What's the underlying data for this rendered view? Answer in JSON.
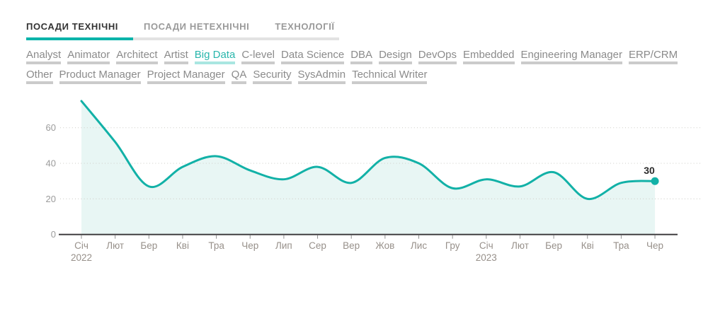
{
  "accent_color": "#00b3a9",
  "tabs": {
    "items": [
      {
        "label": "ПОСАДИ ТЕХНІЧНІ",
        "name": "tab-technical-positions",
        "active": true
      },
      {
        "label": "ПОСАДИ НЕТЕХНІЧНІ",
        "name": "tab-non-technical-positions",
        "active": false
      },
      {
        "label": "ТЕХНОЛОГІЇ",
        "name": "tab-technologies",
        "active": false
      }
    ]
  },
  "filters": {
    "items": [
      {
        "label": "Analyst",
        "name": "filter-analyst",
        "selected": false
      },
      {
        "label": "Animator",
        "name": "filter-animator",
        "selected": false
      },
      {
        "label": "Architect",
        "name": "filter-architect",
        "selected": false
      },
      {
        "label": "Artist",
        "name": "filter-artist",
        "selected": false
      },
      {
        "label": "Big Data",
        "name": "filter-big-data",
        "selected": true
      },
      {
        "label": "C-level",
        "name": "filter-c-level",
        "selected": false
      },
      {
        "label": "Data Science",
        "name": "filter-data-science",
        "selected": false
      },
      {
        "label": "DBA",
        "name": "filter-dba",
        "selected": false
      },
      {
        "label": "Design",
        "name": "filter-design",
        "selected": false
      },
      {
        "label": "DevOps",
        "name": "filter-devops",
        "selected": false
      },
      {
        "label": "Embedded",
        "name": "filter-embedded",
        "selected": false
      },
      {
        "label": "Engineering Manager",
        "name": "filter-engineering-manager",
        "selected": false
      },
      {
        "label": "ERP/CRM",
        "name": "filter-erp-crm",
        "selected": false
      },
      {
        "label": "Other",
        "name": "filter-other",
        "selected": false
      },
      {
        "label": "Product Manager",
        "name": "filter-product-manager",
        "selected": false
      },
      {
        "label": "Project Manager",
        "name": "filter-project-manager",
        "selected": false
      },
      {
        "label": "QA",
        "name": "filter-qa",
        "selected": false
      },
      {
        "label": "Security",
        "name": "filter-security",
        "selected": false
      },
      {
        "label": "SysAdmin",
        "name": "filter-sysadmin",
        "selected": false
      },
      {
        "label": "Technical Writer",
        "name": "filter-technical-writer",
        "selected": false
      }
    ]
  },
  "chart_data": {
    "type": "line",
    "series": "Big Data",
    "categories": [
      {
        "label": "Січ",
        "year": "2022"
      },
      {
        "label": "Лют"
      },
      {
        "label": "Бер"
      },
      {
        "label": "Кві"
      },
      {
        "label": "Тра"
      },
      {
        "label": "Чер"
      },
      {
        "label": "Лип"
      },
      {
        "label": "Сер"
      },
      {
        "label": "Вер"
      },
      {
        "label": "Жов"
      },
      {
        "label": "Лис"
      },
      {
        "label": "Гру"
      },
      {
        "label": "Січ",
        "year": "2023"
      },
      {
        "label": "Лют"
      },
      {
        "label": "Бер"
      },
      {
        "label": "Кві"
      },
      {
        "label": "Тра"
      },
      {
        "label": "Чер"
      }
    ],
    "values": [
      75,
      52,
      27,
      38,
      44,
      36,
      31,
      38,
      29,
      43,
      40,
      26,
      31,
      27,
      35,
      20,
      29,
      30
    ],
    "end_label": "30",
    "title": "",
    "xlabel": "",
    "ylabel": "",
    "ylim": [
      0,
      80
    ],
    "yticks": [
      0,
      20,
      40,
      60
    ],
    "grid": "dotted-horizontal",
    "legend": "none",
    "area_fill": true,
    "smooth": true,
    "colors": {
      "line": "#12b1a7",
      "fill": "#e8f6f4",
      "axis": "#403e41",
      "grid": "#d2d2cd",
      "tick": "#8f8f8f",
      "x_label": "#97908a",
      "y_label": "#9b9b9b",
      "end_label": "#2b2b2b"
    }
  }
}
